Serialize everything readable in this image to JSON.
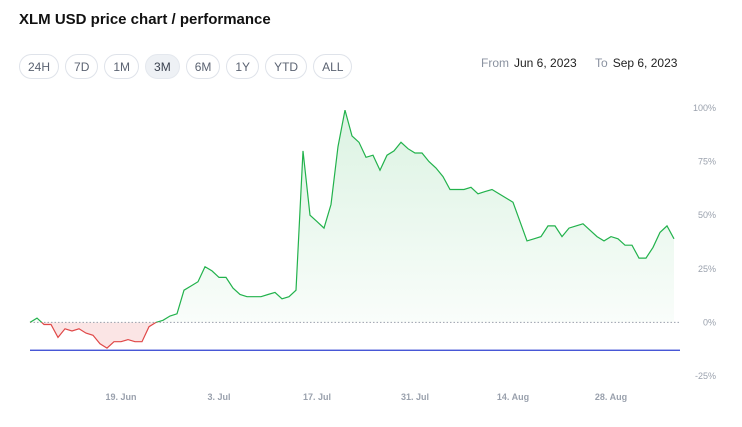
{
  "title": "XLM USD price chart / performance",
  "ranges": [
    {
      "label": "24H",
      "active": false
    },
    {
      "label": "7D",
      "active": false
    },
    {
      "label": "1M",
      "active": false
    },
    {
      "label": "3M",
      "active": true
    },
    {
      "label": "6M",
      "active": false
    },
    {
      "label": "1Y",
      "active": false
    },
    {
      "label": "YTD",
      "active": false
    },
    {
      "label": "ALL",
      "active": false
    }
  ],
  "date_range": {
    "from_label": "From",
    "from_value": "Jun 6, 2023",
    "to_label": "To",
    "to_value": "Sep 6, 2023"
  },
  "colors": {
    "up": "#22b24c",
    "down": "#e04848",
    "reference": "#2d3fd1",
    "zero": "#9aa1ad"
  },
  "chart_data": {
    "type": "area",
    "title": "",
    "xlabel": "",
    "ylabel": "",
    "y_unit": "%",
    "ylim": [
      -25,
      100
    ],
    "xlim": [
      "2023-06-06",
      "2023-09-06"
    ],
    "y_ticks": [
      {
        "value": 100,
        "label": "100%"
      },
      {
        "value": 75,
        "label": "75%"
      },
      {
        "value": 50,
        "label": "50%"
      },
      {
        "value": 25,
        "label": "25%"
      },
      {
        "value": 0,
        "label": "0%"
      },
      {
        "value": -25,
        "label": "-25%"
      }
    ],
    "x_ticks": [
      {
        "value": "2023-06-19",
        "label": "19. Jun"
      },
      {
        "value": "2023-07-03",
        "label": "3. Jul"
      },
      {
        "value": "2023-07-17",
        "label": "17. Jul"
      },
      {
        "value": "2023-07-31",
        "label": "31. Jul"
      },
      {
        "value": "2023-08-14",
        "label": "14. Aug"
      },
      {
        "value": "2023-08-28",
        "label": "28. Aug"
      }
    ],
    "reference_line": -13,
    "baseline": 0,
    "series": [
      {
        "x": [
          "2023-06-06",
          "2023-06-07",
          "2023-06-08",
          "2023-06-09",
          "2023-06-10",
          "2023-06-11",
          "2023-06-12",
          "2023-06-13",
          "2023-06-14",
          "2023-06-15",
          "2023-06-16",
          "2023-06-17",
          "2023-06-18",
          "2023-06-19",
          "2023-06-20",
          "2023-06-21",
          "2023-06-22",
          "2023-06-23",
          "2023-06-24",
          "2023-06-25",
          "2023-06-26",
          "2023-06-27",
          "2023-06-28",
          "2023-06-29",
          "2023-06-30",
          "2023-07-01",
          "2023-07-02",
          "2023-07-03",
          "2023-07-04",
          "2023-07-05",
          "2023-07-06",
          "2023-07-07",
          "2023-07-08",
          "2023-07-09",
          "2023-07-10",
          "2023-07-11",
          "2023-07-12",
          "2023-07-13",
          "2023-07-14",
          "2023-07-15",
          "2023-07-16",
          "2023-07-17",
          "2023-07-18",
          "2023-07-19",
          "2023-07-20",
          "2023-07-21",
          "2023-07-22",
          "2023-07-23",
          "2023-07-24",
          "2023-07-25",
          "2023-07-26",
          "2023-07-27",
          "2023-07-28",
          "2023-07-29",
          "2023-07-30",
          "2023-07-31",
          "2023-08-01",
          "2023-08-02",
          "2023-08-03",
          "2023-08-04",
          "2023-08-05",
          "2023-08-06",
          "2023-08-07",
          "2023-08-08",
          "2023-08-09",
          "2023-08-10",
          "2023-08-11",
          "2023-08-12",
          "2023-08-13",
          "2023-08-14",
          "2023-08-15",
          "2023-08-16",
          "2023-08-17",
          "2023-08-18",
          "2023-08-19",
          "2023-08-20",
          "2023-08-21",
          "2023-08-22",
          "2023-08-23",
          "2023-08-24",
          "2023-08-25",
          "2023-08-26",
          "2023-08-27",
          "2023-08-28",
          "2023-08-29",
          "2023-08-30",
          "2023-08-31",
          "2023-09-01",
          "2023-09-02",
          "2023-09-03",
          "2023-09-04",
          "2023-09-05",
          "2023-09-06"
        ],
        "y": [
          0,
          2,
          -1,
          -1,
          -7,
          -3,
          -4,
          -3,
          -5,
          -6,
          -10,
          -12,
          -9,
          -9,
          -8,
          -9,
          -9,
          -2,
          0,
          1,
          3,
          4,
          15,
          17,
          19,
          26,
          24,
          21,
          21,
          16,
          13,
          12,
          12,
          12,
          13,
          14,
          11,
          12,
          15,
          80,
          50,
          47,
          44,
          55,
          82,
          99,
          87,
          84,
          77,
          78,
          71,
          78,
          80,
          84,
          81,
          79,
          79,
          75,
          72,
          68,
          62,
          62,
          62,
          63,
          60,
          61,
          62,
          60,
          58,
          56,
          47,
          38,
          39,
          40,
          45,
          45,
          40,
          44,
          45,
          46,
          43,
          40,
          38,
          40,
          39,
          36,
          36,
          30,
          30,
          35,
          42,
          45,
          39
        ]
      }
    ]
  }
}
